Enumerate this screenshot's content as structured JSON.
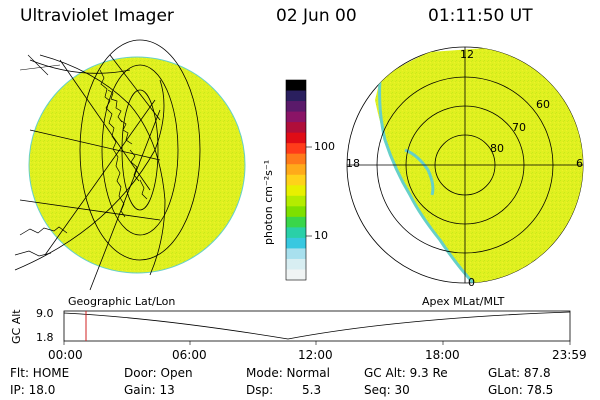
{
  "header": {
    "instrument": "Ultraviolet Imager",
    "date": "02 Jun 00",
    "time": "01:11:50 UT"
  },
  "colorbar": {
    "unit_label": "photon cm⁻²s⁻¹",
    "ticks": [
      "100",
      "10"
    ],
    "colors": [
      "#000000",
      "#2a1f5e",
      "#5a1a6a",
      "#8a1466",
      "#b00e3a",
      "#e00c16",
      "#ff3c1a",
      "#ff7a1a",
      "#ffaa1a",
      "#ffd21a",
      "#e8f000",
      "#b4ec00",
      "#7ee000",
      "#3ad64a",
      "#2ad0a8",
      "#38c8e0",
      "#a8e0ee",
      "#d8eef2",
      "#f0f4f4"
    ]
  },
  "left_panel": {
    "label": "Geographic Lat/Lon",
    "fill_color": "#e0f020"
  },
  "right_panel": {
    "label": "Apex MLat/MLT",
    "mlt_labels": {
      "top": "12",
      "left": "18",
      "right": "6",
      "bottom": "0"
    },
    "mlat_labels": [
      "60",
      "70",
      "80"
    ],
    "fill_color": "#e0f020"
  },
  "timeline": {
    "ylabel": "GC Alt",
    "ymax": "9.0",
    "ymin": "1.8",
    "xticks": [
      "00:00",
      "06:00",
      "12:00",
      "18:00",
      "23:59"
    ],
    "marker_color": "#d02020"
  },
  "info": {
    "flt": "Flt: HOME",
    "ip": "IP: 18.0",
    "door": "Door: Open",
    "gain": "Gain: 13",
    "mode": "Mode: Normal",
    "dsp_label": "Dsp:",
    "dsp_value": "5.3",
    "gcalt": "GC Alt: 9.3 Re",
    "seq": "Seq: 30",
    "glat": "GLat: 87.8",
    "glon": "GLon: 78.5"
  }
}
